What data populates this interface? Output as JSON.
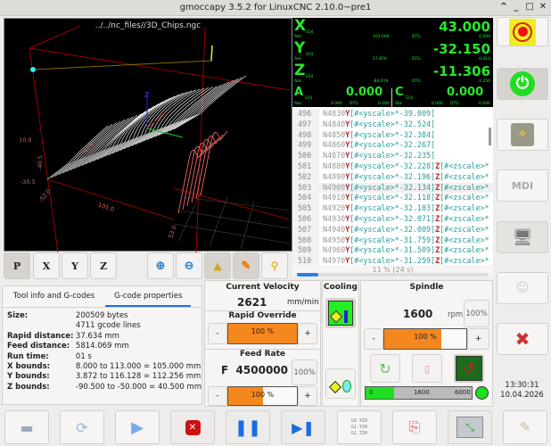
{
  "window": {
    "title": "gmoccapy 3.5.2 for LinuxCNC 2.10.0~pre1",
    "controls": [
      "^",
      "_",
      "□",
      "✕"
    ]
  },
  "preview": {
    "filename": "../../nc_files//3D_Chips.ngc",
    "dims": [
      "10.0",
      "-40.5",
      "-30.5",
      "-52.0",
      "105.0",
      "53.0",
      "50.3"
    ],
    "toolbar": [
      {
        "name": "view-p",
        "label": "P"
      },
      {
        "name": "view-x",
        "label": "X"
      },
      {
        "name": "view-y",
        "label": "Y"
      },
      {
        "name": "view-z",
        "label": "Z"
      }
    ]
  },
  "dro": {
    "axes": [
      {
        "axis": "X",
        "cs": "G54",
        "value": "43.000",
        "abs_label": "Abs",
        "abs": "103.000",
        "dtg_label": "DTG",
        "dtg": "0.000"
      },
      {
        "axis": "Y",
        "cs": "G54",
        "value": "-32.150",
        "abs_label": "Abs",
        "abs": "27.850",
        "dtg_label": "DTG",
        "dtg": "0.010"
      },
      {
        "axis": "Z",
        "cs": "G54",
        "value": "-11.306",
        "abs_label": "Abs",
        "abs": "-84.019",
        "dtg_label": "DTG",
        "dtg": "2.250"
      },
      {
        "axis": "A",
        "cs": "G54",
        "value": "0.000",
        "abs_label": "Abs",
        "abs": "0.000",
        "dtg_label": "DTG",
        "dtg": "0.000"
      },
      {
        "axis": "C",
        "cs": "G54",
        "value": "0.000",
        "abs_label": "Abs",
        "abs": "0.000",
        "dtg_label": "DTG",
        "dtg": "0.000"
      }
    ]
  },
  "gcode": {
    "lines": [
      {
        "n": "496",
        "code": "N4830",
        "y": "-39.009",
        "z": false
      },
      {
        "n": "497",
        "code": "N4840",
        "y": "-32.524",
        "z": false
      },
      {
        "n": "498",
        "code": "N4850",
        "y": "-32.384",
        "z": false
      },
      {
        "n": "499",
        "code": "N4860",
        "y": "-32.267",
        "z": false
      },
      {
        "n": "500",
        "code": "N4870",
        "y": "-32.235",
        "z": false
      },
      {
        "n": "501",
        "code": "N4880",
        "y": "-32.228",
        "z": true
      },
      {
        "n": "502",
        "code": "N4890",
        "y": "-32.196",
        "z": true
      },
      {
        "n": "503",
        "code": "N4900",
        "y": "-32.134",
        "z": true
      },
      {
        "n": "504",
        "code": "N4910",
        "y": "-32.118",
        "z": true
      },
      {
        "n": "505",
        "code": "N4920",
        "y": "-32.103",
        "z": true
      },
      {
        "n": "506",
        "code": "N4930",
        "y": "-32.071",
        "z": true
      },
      {
        "n": "507",
        "code": "N4940",
        "y": "-32.009",
        "z": true
      },
      {
        "n": "508",
        "code": "N4950",
        "y": "-31.759",
        "z": true
      },
      {
        "n": "509",
        "code": "N4960",
        "y": "-31.509",
        "z": true
      },
      {
        "n": "510",
        "code": "N4970",
        "y": "-31.259",
        "z": true
      }
    ],
    "current_line": "503",
    "progress_text": "11 % (24 s)",
    "progress": 11
  },
  "tabs": [
    {
      "label": "Tool info and G-codes",
      "active": false
    },
    {
      "label": "G-code properties",
      "active": true
    }
  ],
  "properties": [
    {
      "k": "Size:",
      "v": "200509 bytes"
    },
    {
      "k": "",
      "v": "4711 gcode lines"
    },
    {
      "k": "Rapid distance:",
      "v": "37.634 mm"
    },
    {
      "k": "Feed distance:",
      "v": "5814.069 mm"
    },
    {
      "k": "Run time:",
      "v": "01 s"
    },
    {
      "k": "X bounds:",
      "v": "8.000 to 113.000 = 105.000 mm"
    },
    {
      "k": "Y bounds:",
      "v": "3.872 to 116.128 = 112.256 mm"
    },
    {
      "k": "Z bounds:",
      "v": "-90.500 to -50.000 = 40.500 mm"
    }
  ],
  "velocity": {
    "title": "Current Velocity",
    "value": "2621",
    "unit": "mm/min"
  },
  "rapid": {
    "title": "Rapid Override",
    "value": "100 %",
    "percent": 100,
    "minus": "-",
    "plus": "+"
  },
  "feed": {
    "title": "Feed Rate",
    "value": "F  4500000",
    "reset": "100%",
    "bar": "100 %",
    "percent": 50,
    "minus": "-",
    "plus": "+"
  },
  "cooling": {
    "title": "Cooling",
    "flood_on": true,
    "mist_on": false
  },
  "spindle": {
    "title": "Spindle",
    "rpm": "1600",
    "unit": "rpm",
    "reset": "100%",
    "bar": "100 %",
    "percent": 70,
    "minus": "-",
    "plus": "+",
    "gauge": {
      "min": "0",
      "value": "1600",
      "max": "6000"
    },
    "at_speed_color": "#1ee01e"
  },
  "clock": {
    "time": "13:30:31",
    "date": "10.04.2026"
  },
  "sidebar": {
    "mdi_label": "MDI"
  },
  "bottom": {
    "gcode_icon_text": [
      "G0 X10",
      "G1 Y20",
      "G1 Z30"
    ]
  },
  "colors": {
    "dro_text": "#2be52b",
    "accent": "#f5871f",
    "tab_underline": "#1a73e8"
  }
}
